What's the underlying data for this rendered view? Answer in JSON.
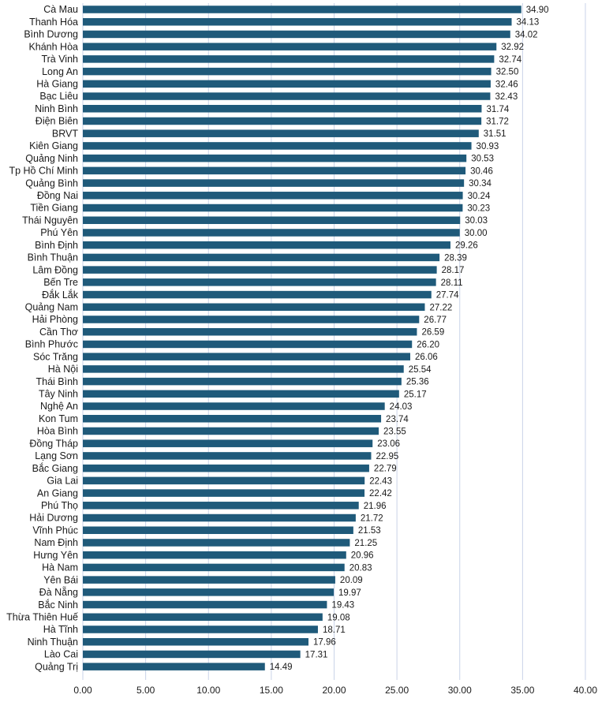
{
  "chart_data": {
    "type": "bar",
    "orientation": "horizontal",
    "categories": [
      "Cà Mau",
      "Thanh Hóa",
      "Bình Dương",
      "Khánh Hòa",
      "Trà Vinh",
      "Long An",
      "Hà Giang",
      "Bạc Liêu",
      "Ninh Bình",
      "Điện Biên",
      "BRVT",
      "Kiên Giang",
      "Quảng Ninh",
      "Tp Hồ Chí Minh",
      "Quảng Bình",
      "Đồng Nai",
      "Tiền Giang",
      "Thái Nguyên",
      "Phú Yên",
      "Bình Định",
      "Bình Thuận",
      "Lâm Đồng",
      "Bến Tre",
      "Đắk Lắk",
      "Quảng Nam",
      "Hải Phòng",
      "Cần Thơ",
      "Bình Phước",
      "Sóc Trăng",
      "Hà Nội",
      "Thái Bình",
      "Tây Ninh",
      "Nghệ An",
      "Kon Tum",
      "Hòa Bình",
      "Đồng Tháp",
      "Lạng Sơn",
      "Bắc Giang",
      "Gia Lai",
      "An Giang",
      "Phú Thọ",
      "Hải Dương",
      "Vĩnh Phúc",
      "Nam Định",
      "Hưng Yên",
      "Hà Nam",
      "Yên Bái",
      "Đà Nẵng",
      "Bắc Ninh",
      "Thừa Thiên Huế",
      "Hà Tĩnh",
      "Ninh Thuận",
      "Lào Cai",
      "Quảng Trị"
    ],
    "values": [
      34.9,
      34.13,
      34.02,
      32.92,
      32.74,
      32.5,
      32.46,
      32.43,
      31.74,
      31.72,
      31.51,
      30.93,
      30.53,
      30.46,
      30.34,
      30.24,
      30.23,
      30.03,
      30.0,
      29.26,
      28.39,
      28.17,
      28.11,
      27.74,
      27.22,
      26.77,
      26.59,
      26.2,
      26.06,
      25.54,
      25.36,
      25.17,
      24.03,
      23.74,
      23.55,
      23.06,
      22.95,
      22.79,
      22.43,
      22.42,
      21.96,
      21.72,
      21.53,
      21.25,
      20.96,
      20.83,
      20.09,
      19.97,
      19.43,
      19.08,
      18.71,
      17.96,
      17.31,
      14.49
    ],
    "value_labels": [
      "34.90",
      "34.13",
      "34.02",
      "32.92",
      "32.74",
      "32.50",
      "32.46",
      "32.43",
      "31.74",
      "31.72",
      "31.51",
      "30.93",
      "30.53",
      "30.46",
      "30.34",
      "30.24",
      "30.23",
      "30.03",
      "30.00",
      "29.26",
      "28.39",
      "28.17",
      "28.11",
      "27.74",
      "27.22",
      "26.77",
      "26.59",
      "26.20",
      "26.06",
      "25.54",
      "25.36",
      "25.17",
      "24.03",
      "23.74",
      "23.55",
      "23.06",
      "22.95",
      "22.79",
      "22.43",
      "22.42",
      "21.96",
      "21.72",
      "21.53",
      "21.25",
      "20.96",
      "20.83",
      "20.09",
      "19.97",
      "19.43",
      "19.08",
      "18.71",
      "17.96",
      "17.31",
      "14.49"
    ],
    "x_ticks": [
      0,
      5,
      10,
      15,
      20,
      25,
      30,
      35,
      40
    ],
    "x_tick_labels": [
      "0.00",
      "5.00",
      "10.00",
      "15.00",
      "20.00",
      "25.00",
      "30.00",
      "35.00",
      "40.00"
    ],
    "xlim": [
      0,
      40
    ],
    "grid": "vertical",
    "legend": "none",
    "title": "",
    "xlabel": "",
    "ylabel": "",
    "colors": {
      "bar": "#1f5a7a",
      "grid": "#c9d3e8",
      "text": "#1a1a1a"
    }
  }
}
